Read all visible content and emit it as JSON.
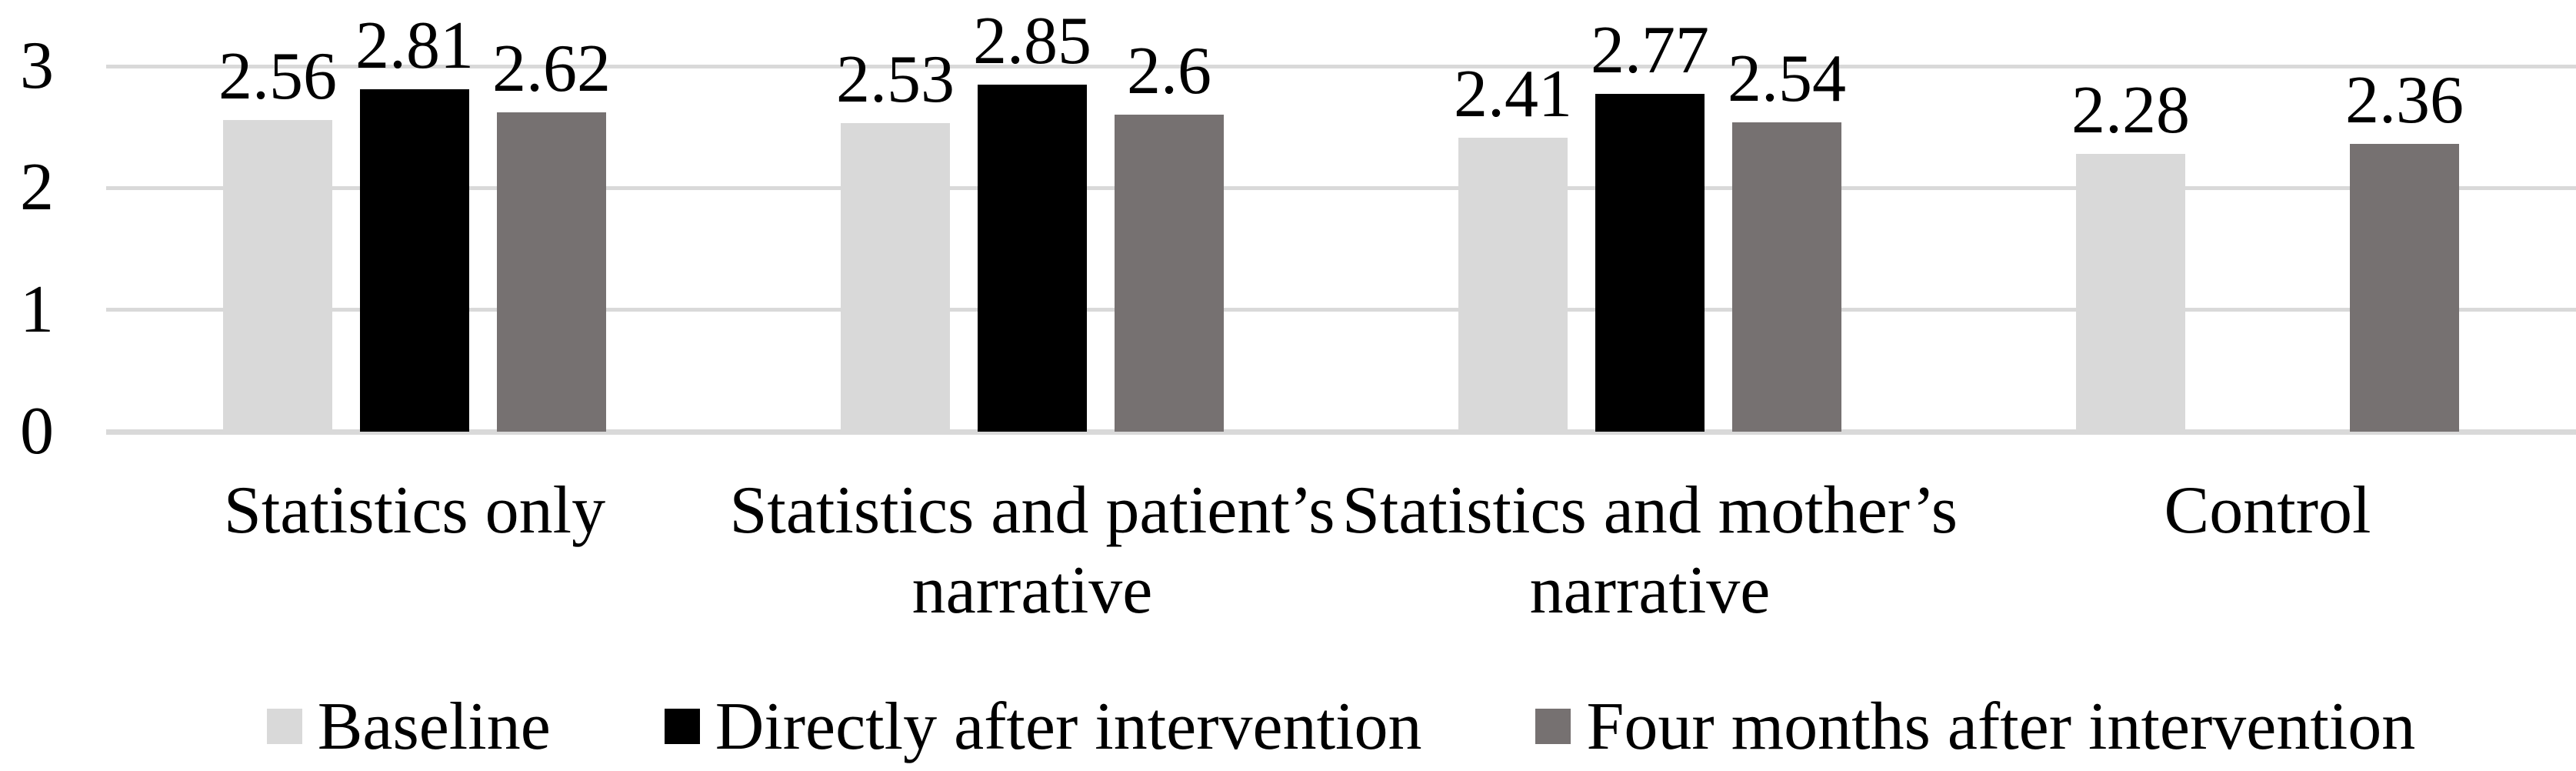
{
  "chart_data": {
    "type": "bar",
    "title": "",
    "xlabel": "",
    "ylabel": "",
    "categories": [
      "Statistics only",
      "Statistics and patient’s narrative",
      "Statistics and mother’s narrative",
      "Control"
    ],
    "series": [
      {
        "name": "Baseline",
        "color": "#d9d9d9",
        "values": [
          2.56,
          2.53,
          2.41,
          2.28
        ],
        "labels": [
          "2.56",
          "2.53",
          "2.41",
          "2.28"
        ]
      },
      {
        "name": "Directly after intervention",
        "color": "#000000",
        "values": [
          2.81,
          2.85,
          2.77,
          null
        ],
        "labels": [
          "2.81",
          "2.85",
          "2.77",
          null
        ]
      },
      {
        "name": "Four months after intervention",
        "color": "#767171",
        "values": [
          2.62,
          2.6,
          2.54,
          2.36
        ],
        "labels": [
          "2.62",
          "2.6",
          "2.54",
          "2.36"
        ]
      }
    ],
    "y_ticks": [
      {
        "label": "3",
        "value": 3
      },
      {
        "label": "2",
        "value": 2
      },
      {
        "label": "1",
        "value": 1
      },
      {
        "label": "0",
        "value": 0
      }
    ],
    "ylim": [
      0,
      3
    ],
    "grid": true,
    "gridline_color": "#d9d9d9",
    "axis_line_color": "#d9d9d9",
    "text_color": "#000000",
    "legend_position": "bottom",
    "data_label_position": "outside-end"
  }
}
